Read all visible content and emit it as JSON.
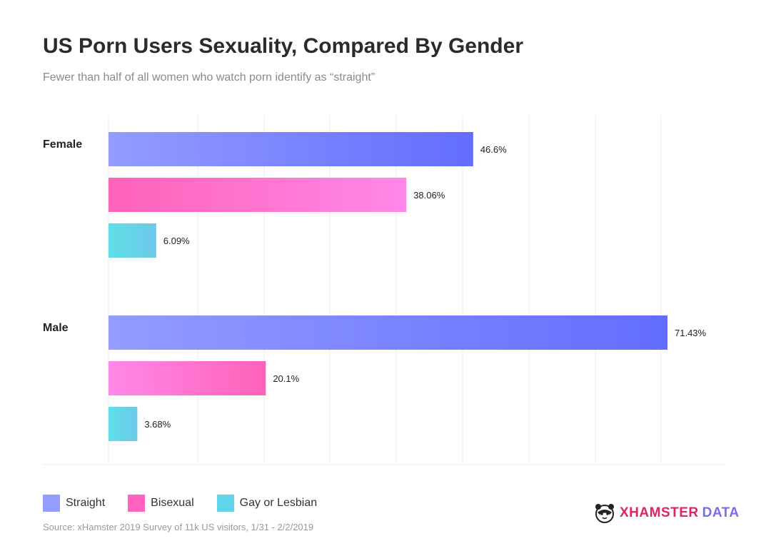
{
  "title": "US Porn Users Sexuality, Compared By Gender",
  "subtitle": "Fewer than half of all women who watch porn identify as “straight”",
  "source": "Source: xHamster 2019 Survey of 11k US visitors, 1/31 - 2/2/2019",
  "brand": {
    "part1": "XHAMSTER",
    "part2": "DATA"
  },
  "colors": {
    "straight_start": "#949cff",
    "straight_end": "#626dff",
    "bisexual_start": "#ff62b9",
    "bisexual_end": "#ff88e8",
    "gay_start": "#5edfe7",
    "gay_end": "#6ec8ea",
    "grid": "#eeeeee"
  },
  "legend": [
    {
      "label": "Straight",
      "color": "#949cff"
    },
    {
      "label": "Bisexual",
      "color": "#ff62c0"
    },
    {
      "label": "Gay or Lesbian",
      "color": "#5fd4ea"
    }
  ],
  "chart_data": {
    "type": "bar",
    "orientation": "horizontal",
    "title": "US Porn Users Sexuality, Compared By Gender",
    "categories": [
      "Female",
      "Male"
    ],
    "series": [
      {
        "name": "Straight",
        "values": [
          46.6,
          71.43
        ],
        "labels": [
          "46.6%",
          "71.43%"
        ]
      },
      {
        "name": "Bisexual",
        "values": [
          38.06,
          20.1
        ],
        "labels": [
          "38.06%",
          "20.1%"
        ]
      },
      {
        "name": "Gay or Lesbian",
        "values": [
          6.09,
          3.68
        ],
        "labels": [
          "6.09%",
          "3.68%"
        ]
      }
    ],
    "xlim": [
      0,
      71.43
    ],
    "grid": true,
    "legend_position": "bottom-left"
  }
}
